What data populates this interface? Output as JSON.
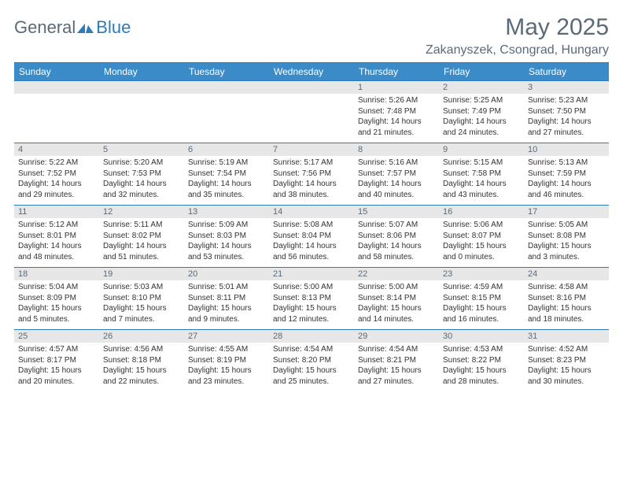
{
  "brand": {
    "part1": "General",
    "part2": "Blue"
  },
  "title": "May 2025",
  "location": "Zakanyszek, Csongrad, Hungary",
  "colors": {
    "header_bg": "#3b8bc9",
    "rule": "#2b7bbd",
    "daynum_bg": "#e7e7e7",
    "text_muted": "#5b6a78",
    "text_body": "#333333",
    "background": "#ffffff"
  },
  "weekdays": [
    "Sunday",
    "Monday",
    "Tuesday",
    "Wednesday",
    "Thursday",
    "Friday",
    "Saturday"
  ],
  "days": [
    {
      "n": 1,
      "sr": "5:26 AM",
      "ss": "7:48 PM",
      "dl": "14 hours and 21 minutes."
    },
    {
      "n": 2,
      "sr": "5:25 AM",
      "ss": "7:49 PM",
      "dl": "14 hours and 24 minutes."
    },
    {
      "n": 3,
      "sr": "5:23 AM",
      "ss": "7:50 PM",
      "dl": "14 hours and 27 minutes."
    },
    {
      "n": 4,
      "sr": "5:22 AM",
      "ss": "7:52 PM",
      "dl": "14 hours and 29 minutes."
    },
    {
      "n": 5,
      "sr": "5:20 AM",
      "ss": "7:53 PM",
      "dl": "14 hours and 32 minutes."
    },
    {
      "n": 6,
      "sr": "5:19 AM",
      "ss": "7:54 PM",
      "dl": "14 hours and 35 minutes."
    },
    {
      "n": 7,
      "sr": "5:17 AM",
      "ss": "7:56 PM",
      "dl": "14 hours and 38 minutes."
    },
    {
      "n": 8,
      "sr": "5:16 AM",
      "ss": "7:57 PM",
      "dl": "14 hours and 40 minutes."
    },
    {
      "n": 9,
      "sr": "5:15 AM",
      "ss": "7:58 PM",
      "dl": "14 hours and 43 minutes."
    },
    {
      "n": 10,
      "sr": "5:13 AM",
      "ss": "7:59 PM",
      "dl": "14 hours and 46 minutes."
    },
    {
      "n": 11,
      "sr": "5:12 AM",
      "ss": "8:01 PM",
      "dl": "14 hours and 48 minutes."
    },
    {
      "n": 12,
      "sr": "5:11 AM",
      "ss": "8:02 PM",
      "dl": "14 hours and 51 minutes."
    },
    {
      "n": 13,
      "sr": "5:09 AM",
      "ss": "8:03 PM",
      "dl": "14 hours and 53 minutes."
    },
    {
      "n": 14,
      "sr": "5:08 AM",
      "ss": "8:04 PM",
      "dl": "14 hours and 56 minutes."
    },
    {
      "n": 15,
      "sr": "5:07 AM",
      "ss": "8:06 PM",
      "dl": "14 hours and 58 minutes."
    },
    {
      "n": 16,
      "sr": "5:06 AM",
      "ss": "8:07 PM",
      "dl": "15 hours and 0 minutes."
    },
    {
      "n": 17,
      "sr": "5:05 AM",
      "ss": "8:08 PM",
      "dl": "15 hours and 3 minutes."
    },
    {
      "n": 18,
      "sr": "5:04 AM",
      "ss": "8:09 PM",
      "dl": "15 hours and 5 minutes."
    },
    {
      "n": 19,
      "sr": "5:03 AM",
      "ss": "8:10 PM",
      "dl": "15 hours and 7 minutes."
    },
    {
      "n": 20,
      "sr": "5:01 AM",
      "ss": "8:11 PM",
      "dl": "15 hours and 9 minutes."
    },
    {
      "n": 21,
      "sr": "5:00 AM",
      "ss": "8:13 PM",
      "dl": "15 hours and 12 minutes."
    },
    {
      "n": 22,
      "sr": "5:00 AM",
      "ss": "8:14 PM",
      "dl": "15 hours and 14 minutes."
    },
    {
      "n": 23,
      "sr": "4:59 AM",
      "ss": "8:15 PM",
      "dl": "15 hours and 16 minutes."
    },
    {
      "n": 24,
      "sr": "4:58 AM",
      "ss": "8:16 PM",
      "dl": "15 hours and 18 minutes."
    },
    {
      "n": 25,
      "sr": "4:57 AM",
      "ss": "8:17 PM",
      "dl": "15 hours and 20 minutes."
    },
    {
      "n": 26,
      "sr": "4:56 AM",
      "ss": "8:18 PM",
      "dl": "15 hours and 22 minutes."
    },
    {
      "n": 27,
      "sr": "4:55 AM",
      "ss": "8:19 PM",
      "dl": "15 hours and 23 minutes."
    },
    {
      "n": 28,
      "sr": "4:54 AM",
      "ss": "8:20 PM",
      "dl": "15 hours and 25 minutes."
    },
    {
      "n": 29,
      "sr": "4:54 AM",
      "ss": "8:21 PM",
      "dl": "15 hours and 27 minutes."
    },
    {
      "n": 30,
      "sr": "4:53 AM",
      "ss": "8:22 PM",
      "dl": "15 hours and 28 minutes."
    },
    {
      "n": 31,
      "sr": "4:52 AM",
      "ss": "8:23 PM",
      "dl": "15 hours and 30 minutes."
    }
  ],
  "first_weekday_index": 4,
  "labels": {
    "sunrise": "Sunrise:",
    "sunset": "Sunset:",
    "daylight": "Daylight:"
  }
}
